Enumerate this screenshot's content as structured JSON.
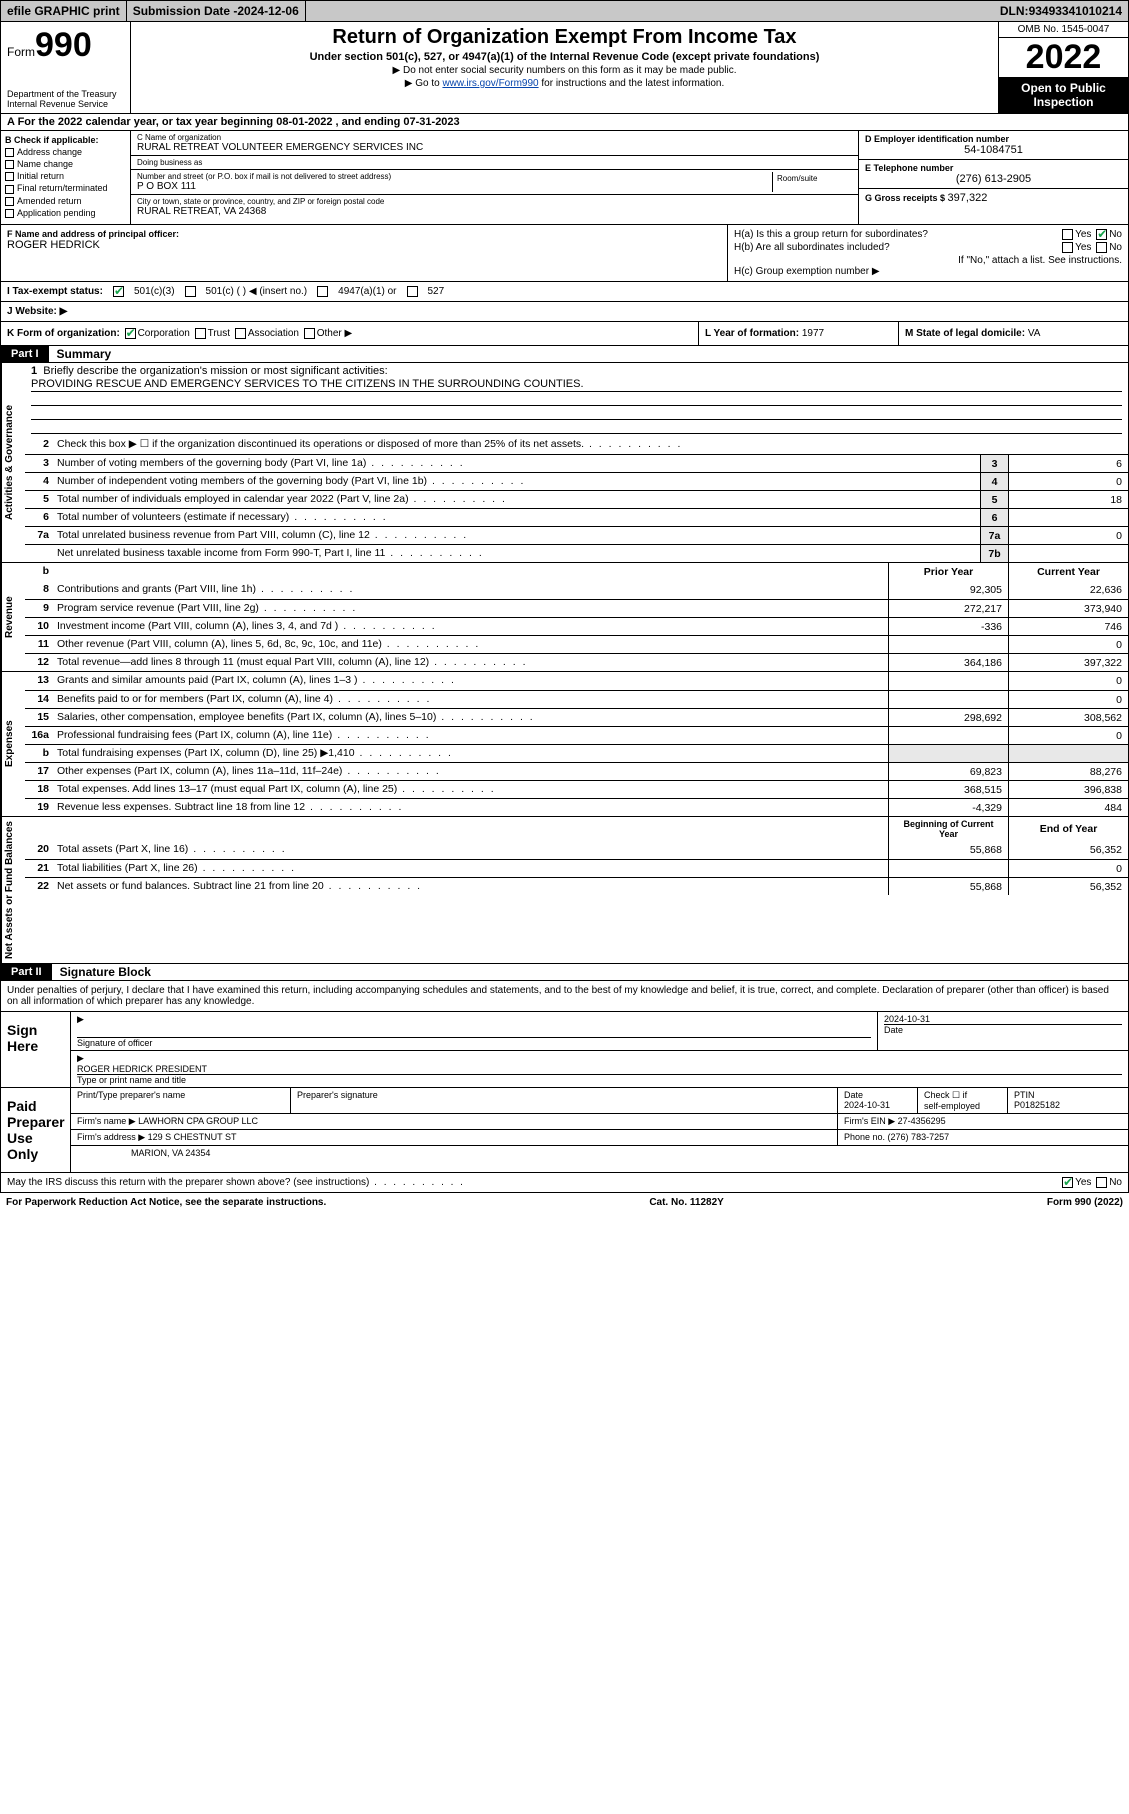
{
  "topbar": {
    "efile": "efile GRAPHIC print",
    "sub_label": "Submission Date - ",
    "sub_date": "2024-12-06",
    "dln_label": "DLN: ",
    "dln": "93493341010214"
  },
  "header": {
    "form_prefix": "Form",
    "form_num": "990",
    "dept": "Department of the Treasury\nInternal Revenue Service",
    "title": "Return of Organization Exempt From Income Tax",
    "subtitle": "Under section 501(c), 527, or 4947(a)(1) of the Internal Revenue Code (except private foundations)",
    "note1": "▶ Do not enter social security numbers on this form as it may be made public.",
    "note2_pre": "▶ Go to ",
    "note2_link": "www.irs.gov/Form990",
    "note2_post": " for instructions and the latest information.",
    "omb": "OMB No. 1545-0047",
    "year": "2022",
    "inspect": "Open to Public Inspection"
  },
  "secA": {
    "text_pre": "A For the 2022 calendar year, or tax year beginning ",
    "begin": "08-01-2022",
    "mid": " , and ending ",
    "end": "07-31-2023"
  },
  "secB": {
    "heading": "B Check if applicable:",
    "items": [
      "Address change",
      "Name change",
      "Initial return",
      "Final return/terminated",
      "Amended return",
      "Application pending"
    ]
  },
  "secC": {
    "name_lbl": "C Name of organization",
    "name": "RURAL RETREAT VOLUNTEER EMERGENCY SERVICES INC",
    "dba_lbl": "Doing business as",
    "dba": "",
    "addr_lbl": "Number and street (or P.O. box if mail is not delivered to street address)",
    "room_lbl": "Room/suite",
    "addr": "P O BOX 111",
    "city_lbl": "City or town, state or province, country, and ZIP or foreign postal code",
    "city": "RURAL RETREAT, VA  24368"
  },
  "secD": {
    "lbl": "D Employer identification number",
    "val": "54-1084751"
  },
  "secE": {
    "lbl": "E Telephone number",
    "val": "(276) 613-2905"
  },
  "secG": {
    "lbl": "G Gross receipts $ ",
    "val": "397,322"
  },
  "secF": {
    "lbl": "F Name and address of principal officer:",
    "val": "ROGER HEDRICK"
  },
  "secH": {
    "a": "H(a)  Is this a group return for subordinates?",
    "a_yes": "Yes",
    "a_no": "No",
    "b": "H(b)  Are all subordinates included?",
    "b_yes": "Yes",
    "b_no": "No",
    "b_note": "If \"No,\" attach a list. See instructions.",
    "c": "H(c)  Group exemption number ▶"
  },
  "secI": {
    "lbl": "I   Tax-exempt status:",
    "opts": [
      "501(c)(3)",
      "501(c) (  ) ◀ (insert no.)",
      "4947(a)(1) or",
      "527"
    ]
  },
  "secJ": {
    "lbl": "J   Website: ▶",
    "val": ""
  },
  "secK": {
    "lbl": "K Form of organization:",
    "opts": [
      "Corporation",
      "Trust",
      "Association",
      "Other ▶"
    ]
  },
  "secL": {
    "lbl": "L Year of formation: ",
    "val": "1977"
  },
  "secM": {
    "lbl": "M State of legal domicile: ",
    "val": "VA"
  },
  "part1": {
    "tag": "Part I",
    "title": "Summary"
  },
  "mission": {
    "num": "1",
    "lbl": "Briefly describe the organization's mission or most significant activities:",
    "text": "PROVIDING RESCUE AND EMERGENCY SERVICES TO THE CITIZENS IN THE SURROUNDING COUNTIES."
  },
  "side_labels": {
    "gov": "Activities & Governance",
    "rev": "Revenue",
    "exp": "Expenses",
    "net": "Net Assets or Fund Balances"
  },
  "gov_lines": [
    {
      "num": "2",
      "desc": "Check this box ▶ ☐  if the organization discontinued its operations or disposed of more than 25% of its net assets.",
      "cell": "",
      "val": ""
    },
    {
      "num": "3",
      "desc": "Number of voting members of the governing body (Part VI, line 1a)",
      "cell": "3",
      "val": "6"
    },
    {
      "num": "4",
      "desc": "Number of independent voting members of the governing body (Part VI, line 1b)",
      "cell": "4",
      "val": "0"
    },
    {
      "num": "5",
      "desc": "Total number of individuals employed in calendar year 2022 (Part V, line 2a)",
      "cell": "5",
      "val": "18"
    },
    {
      "num": "6",
      "desc": "Total number of volunteers (estimate if necessary)",
      "cell": "6",
      "val": ""
    },
    {
      "num": "7a",
      "desc": "Total unrelated business revenue from Part VIII, column (C), line 12",
      "cell": "7a",
      "val": "0"
    },
    {
      "num": "",
      "desc": "Net unrelated business taxable income from Form 990-T, Part I, line 11",
      "cell": "7b",
      "val": ""
    }
  ],
  "two_col_hdr": {
    "num": "b",
    "prior": "Prior Year",
    "curr": "Current Year"
  },
  "rev_lines": [
    {
      "num": "8",
      "desc": "Contributions and grants (Part VIII, line 1h)",
      "prior": "92,305",
      "curr": "22,636"
    },
    {
      "num": "9",
      "desc": "Program service revenue (Part VIII, line 2g)",
      "prior": "272,217",
      "curr": "373,940"
    },
    {
      "num": "10",
      "desc": "Investment income (Part VIII, column (A), lines 3, 4, and 7d )",
      "prior": "-336",
      "curr": "746"
    },
    {
      "num": "11",
      "desc": "Other revenue (Part VIII, column (A), lines 5, 6d, 8c, 9c, 10c, and 11e)",
      "prior": "",
      "curr": "0"
    },
    {
      "num": "12",
      "desc": "Total revenue—add lines 8 through 11 (must equal Part VIII, column (A), line 12)",
      "prior": "364,186",
      "curr": "397,322"
    }
  ],
  "exp_lines": [
    {
      "num": "13",
      "desc": "Grants and similar amounts paid (Part IX, column (A), lines 1–3 )",
      "prior": "",
      "curr": "0"
    },
    {
      "num": "14",
      "desc": "Benefits paid to or for members (Part IX, column (A), line 4)",
      "prior": "",
      "curr": "0"
    },
    {
      "num": "15",
      "desc": "Salaries, other compensation, employee benefits (Part IX, column (A), lines 5–10)",
      "prior": "298,692",
      "curr": "308,562"
    },
    {
      "num": "16a",
      "desc": "Professional fundraising fees (Part IX, column (A), line 11e)",
      "prior": "",
      "curr": "0"
    },
    {
      "num": "b",
      "desc": "Total fundraising expenses (Part IX, column (D), line 25) ▶1,410",
      "prior": "GREY",
      "curr": "GREY"
    },
    {
      "num": "17",
      "desc": "Other expenses (Part IX, column (A), lines 11a–11d, 11f–24e)",
      "prior": "69,823",
      "curr": "88,276"
    },
    {
      "num": "18",
      "desc": "Total expenses. Add lines 13–17 (must equal Part IX, column (A), line 25)",
      "prior": "368,515",
      "curr": "396,838"
    },
    {
      "num": "19",
      "desc": "Revenue less expenses. Subtract line 18 from line 12",
      "prior": "-4,329",
      "curr": "484"
    }
  ],
  "net_hdr": {
    "prior": "Beginning of Current Year",
    "curr": "End of Year"
  },
  "net_lines": [
    {
      "num": "20",
      "desc": "Total assets (Part X, line 16)",
      "prior": "55,868",
      "curr": "56,352"
    },
    {
      "num": "21",
      "desc": "Total liabilities (Part X, line 26)",
      "prior": "",
      "curr": "0"
    },
    {
      "num": "22",
      "desc": "Net assets or fund balances. Subtract line 21 from line 20",
      "prior": "55,868",
      "curr": "56,352"
    }
  ],
  "part2": {
    "tag": "Part II",
    "title": "Signature Block"
  },
  "decl": "Under penalties of perjury, I declare that I have examined this return, including accompanying schedules and statements, and to the best of my knowledge and belief, it is true, correct, and complete. Declaration of preparer (other than officer) is based on all information of which preparer has any knowledge.",
  "sign": {
    "here": "Sign Here",
    "sig_lbl": "Signature of officer",
    "date_lbl": "Date",
    "date": "2024-10-31",
    "name": "ROGER HEDRICK PRESIDENT",
    "name_lbl": "Type or print name and title"
  },
  "prep": {
    "here": "Paid Preparer Use Only",
    "h1": "Print/Type preparer's name",
    "h2": "Preparer's signature",
    "h3": "Date",
    "date": "2024-10-31",
    "h4a": "Check ☐ if",
    "h4b": "self-employed",
    "h5": "PTIN",
    "ptin": "P01825182",
    "firm_lbl": "Firm's name     ▶ ",
    "firm": "LAWHORN CPA GROUP LLC",
    "ein_lbl": "Firm's EIN ▶ ",
    "ein": "27-4356295",
    "addr_lbl": "Firm's address ▶ ",
    "addr1": "129 S CHESTNUT ST",
    "addr2": "MARION, VA  24354",
    "phone_lbl": "Phone no. ",
    "phone": "(276) 783-7257"
  },
  "discuss": {
    "q": "May the IRS discuss this return with the preparer shown above? (see instructions)",
    "yes": "Yes",
    "no": "No"
  },
  "footer": {
    "left": "For Paperwork Reduction Act Notice, see the separate instructions.",
    "mid": "Cat. No. 11282Y",
    "right": "Form 990 (2022)"
  }
}
